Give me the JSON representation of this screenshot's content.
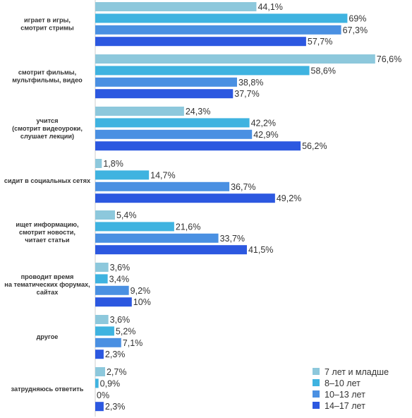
{
  "chart_data": {
    "type": "bar",
    "orientation": "horizontal",
    "value_suffix": "%",
    "categories": [
      "играет в игры,\nсмотрит стримы",
      "смотрит фильмы,\nмультфильмы, видео",
      "учится\n(смотрит видеоуроки,\nслушает лекции)",
      "сидит в социальных сетях",
      "ищет информацию,\nсмотрит новости,\nчитает статьи",
      "проводит время\nна тематических форумах,\nсайтах",
      "другое",
      "затрудняюсь ответить"
    ],
    "series": [
      {
        "name": "7 лет и младше",
        "color": "#8dc8dc",
        "values": [
          44.1,
          76.6,
          24.3,
          1.8,
          5.4,
          3.6,
          3.6,
          2.7
        ],
        "labels": [
          "44,1%",
          "76,6%",
          "24,3%",
          "1,8%",
          "5,4%",
          "3,6%",
          "3,6%",
          "2,7%"
        ]
      },
      {
        "name": "8–10 лет",
        "color": "#3fb3e0",
        "values": [
          69,
          58.6,
          42.2,
          14.7,
          21.6,
          3.4,
          5.2,
          0.9
        ],
        "labels": [
          "69%",
          "58,6%",
          "42,2%",
          "14,7%",
          "21,6%",
          "3,4%",
          "5,2%",
          "0,9%"
        ]
      },
      {
        "name": "10–13 лет",
        "color": "#4a90e2",
        "values": [
          67.3,
          38.8,
          42.9,
          36.7,
          33.7,
          9.2,
          7.1,
          0
        ],
        "labels": [
          "67,3%",
          "38,8%",
          "42,9%",
          "36,7%",
          "33,7%",
          "9,2%",
          "7,1%",
          "0%"
        ]
      },
      {
        "name": "14–17 лет",
        "color": "#2c58e0",
        "values": [
          57.7,
          37.7,
          56.2,
          49.2,
          41.5,
          10,
          2.3,
          2.3
        ],
        "labels": [
          "57,7%",
          "37,7%",
          "56,2%",
          "49,2%",
          "41,5%",
          "10%",
          "2,3%",
          "2,3%"
        ]
      }
    ],
    "xlim": [
      0,
      76.6
    ],
    "legend": "bottom-right",
    "grid": false
  }
}
